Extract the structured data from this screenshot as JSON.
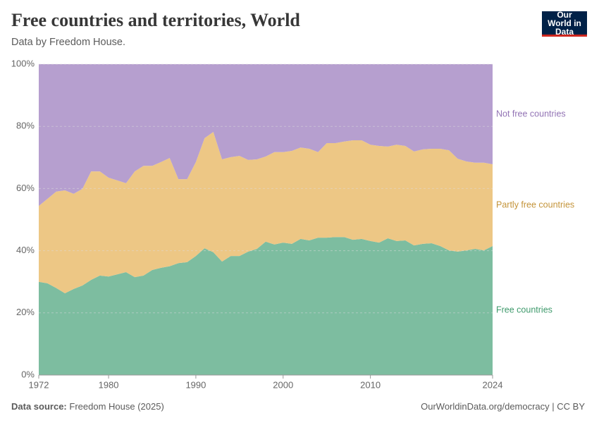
{
  "chart_data": {
    "type": "stacked-area",
    "title": "Free countries and territories, World",
    "subtitle": "Data by Freedom House.",
    "source_label": "Data source:",
    "source": "Freedom House (2025)",
    "footer_link": "OurWorldinData.org/democracy | CC BY",
    "logo": "Our World in Data",
    "x": [
      1972,
      1973,
      1974,
      1975,
      1976,
      1977,
      1978,
      1979,
      1980,
      1981,
      1982,
      1983,
      1984,
      1985,
      1986,
      1987,
      1988,
      1989,
      1990,
      1991,
      1992,
      1993,
      1994,
      1995,
      1996,
      1997,
      1998,
      1999,
      2000,
      2001,
      2002,
      2003,
      2004,
      2005,
      2006,
      2007,
      2008,
      2009,
      2010,
      2011,
      2012,
      2013,
      2014,
      2015,
      2016,
      2017,
      2018,
      2019,
      2020,
      2021,
      2022,
      2023,
      2024
    ],
    "xlim": [
      1972,
      2024
    ],
    "xticks": [
      1972,
      1980,
      1990,
      2000,
      2010,
      2024
    ],
    "ylim": [
      0,
      100
    ],
    "yticks": [
      {
        "value": 0,
        "label": "0%"
      },
      {
        "value": 20,
        "label": "20%"
      },
      {
        "value": 40,
        "label": "40%"
      },
      {
        "value": 60,
        "label": "60%"
      },
      {
        "value": 80,
        "label": "80%"
      },
      {
        "value": 100,
        "label": "100%"
      }
    ],
    "grid": true,
    "series": [
      {
        "name": "Free countries",
        "color": "#7dbda0",
        "label_color": "#3f9a6c",
        "values": [
          30,
          29.5,
          28,
          26.3,
          27.7,
          28.8,
          30.6,
          32,
          31.7,
          32.4,
          33.1,
          31.5,
          32,
          33.8,
          34.5,
          35,
          36,
          36.3,
          38.3,
          40.8,
          39.5,
          36.5,
          38.3,
          38.3,
          39.7,
          40.6,
          42.9,
          42,
          42.6,
          42.2,
          43.8,
          43.3,
          44.2,
          44.2,
          44.4,
          44.4,
          43.5,
          43.8,
          43.1,
          42.6,
          44,
          43.1,
          43.3,
          41.7,
          42.2,
          42.4,
          41.5,
          40.1,
          39.7,
          40.1,
          40.6,
          40.1,
          41.5
        ]
      },
      {
        "name": "Partly free countries",
        "color": "#edc785",
        "label_color": "#c4943a",
        "values": [
          24.4,
          27.2,
          31,
          33.1,
          30.6,
          31.1,
          34.9,
          33.5,
          31.8,
          30.2,
          28.6,
          34,
          35.3,
          33.5,
          34,
          34.8,
          27,
          26.7,
          30.2,
          35.4,
          38.7,
          32.9,
          31.8,
          32.2,
          29.5,
          28.8,
          27.4,
          29.7,
          29.1,
          29.9,
          29.4,
          29.5,
          27.5,
          30.4,
          30.2,
          30.7,
          32,
          31.7,
          31,
          31.1,
          29.5,
          31,
          30.4,
          30.2,
          30.4,
          30.4,
          31.3,
          32.2,
          29.9,
          28.6,
          27.7,
          28.2,
          26.3
        ]
      },
      {
        "name": "Not free countries",
        "color": "#b69fcf",
        "label_color": "#9374b5",
        "values": [
          45.6,
          43.3,
          41,
          40.6,
          41.7,
          40.1,
          34.5,
          34.5,
          36.5,
          37.4,
          38.3,
          34.5,
          32.7,
          32.7,
          31.5,
          30.2,
          37,
          37,
          31.5,
          23.8,
          21.8,
          30.6,
          29.9,
          29.5,
          30.8,
          30.6,
          29.7,
          28.3,
          28.3,
          27.9,
          26.8,
          27.2,
          28.3,
          25.4,
          25.4,
          24.9,
          24.5,
          24.5,
          25.9,
          26.3,
          26.5,
          25.9,
          26.3,
          28.1,
          27.4,
          27.2,
          27.2,
          27.7,
          30.4,
          31.3,
          31.7,
          31.7,
          32.2
        ]
      }
    ]
  }
}
